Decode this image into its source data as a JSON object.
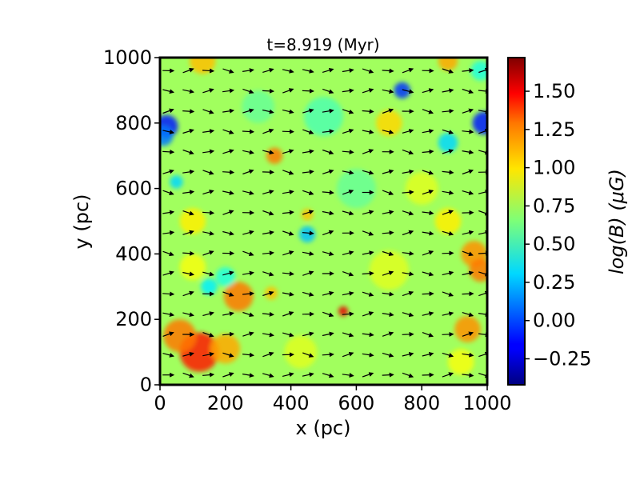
{
  "chart_data": {
    "type": "heatmap",
    "title": "t=8.919 (Myr)",
    "xlabel": "x (pc)",
    "ylabel": "y (pc)",
    "xlim": [
      0,
      1000
    ],
    "ylim": [
      0,
      1000
    ],
    "x_ticks": [
      0,
      200,
      400,
      600,
      800,
      1000
    ],
    "y_ticks": [
      0,
      200,
      400,
      600,
      800,
      1000
    ],
    "colorbar": {
      "label": "log(B) (μG)",
      "colormap": "jet",
      "range": [
        -0.42,
        1.72
      ],
      "ticks": [
        -0.25,
        0.0,
        0.25,
        0.5,
        0.75,
        1.0,
        1.25,
        1.5
      ],
      "tick_labels": [
        "−0.25",
        "0.00",
        "0.25",
        "0.50",
        "0.75",
        "1.00",
        "1.25",
        "1.50"
      ]
    },
    "background_level": 0.72,
    "features": [
      {
        "x": 20,
        "y": 790,
        "value": -0.1,
        "r": 35
      },
      {
        "x": 10,
        "y": 760,
        "value": 0.1,
        "r": 30
      },
      {
        "x": 740,
        "y": 900,
        "value": -0.05,
        "r": 25
      },
      {
        "x": 990,
        "y": 800,
        "value": -0.1,
        "r": 35
      },
      {
        "x": 880,
        "y": 740,
        "value": 0.3,
        "r": 30
      },
      {
        "x": 50,
        "y": 620,
        "value": 0.3,
        "r": 20
      },
      {
        "x": 450,
        "y": 460,
        "value": 0.25,
        "r": 25
      },
      {
        "x": 350,
        "y": 700,
        "value": 1.2,
        "r": 25
      },
      {
        "x": 450,
        "y": 520,
        "value": 1.05,
        "r": 18
      },
      {
        "x": 120,
        "y": 100,
        "value": 1.4,
        "r": 60
      },
      {
        "x": 60,
        "y": 150,
        "value": 1.2,
        "r": 50
      },
      {
        "x": 240,
        "y": 270,
        "value": 1.2,
        "r": 45
      },
      {
        "x": 200,
        "y": 110,
        "value": 1.1,
        "r": 45
      },
      {
        "x": 560,
        "y": 225,
        "value": 1.5,
        "r": 15
      },
      {
        "x": 940,
        "y": 170,
        "value": 1.15,
        "r": 40
      },
      {
        "x": 960,
        "y": 400,
        "value": 1.15,
        "r": 40
      },
      {
        "x": 980,
        "y": 350,
        "value": 1.2,
        "r": 35
      },
      {
        "x": 100,
        "y": 360,
        "value": 0.9,
        "r": 40
      },
      {
        "x": 200,
        "y": 330,
        "value": 0.45,
        "r": 30
      },
      {
        "x": 150,
        "y": 300,
        "value": 0.35,
        "r": 25
      },
      {
        "x": 130,
        "y": 990,
        "value": 1.05,
        "r": 40
      },
      {
        "x": 880,
        "y": 990,
        "value": 1.1,
        "r": 30
      },
      {
        "x": 700,
        "y": 800,
        "value": 1.0,
        "r": 40
      },
      {
        "x": 500,
        "y": 820,
        "value": 0.55,
        "r": 60
      },
      {
        "x": 600,
        "y": 600,
        "value": 0.6,
        "r": 60
      },
      {
        "x": 800,
        "y": 600,
        "value": 0.85,
        "r": 50
      },
      {
        "x": 300,
        "y": 850,
        "value": 0.6,
        "r": 50
      },
      {
        "x": 880,
        "y": 500,
        "value": 0.95,
        "r": 40
      },
      {
        "x": 430,
        "y": 100,
        "value": 0.85,
        "r": 50
      },
      {
        "x": 700,
        "y": 350,
        "value": 0.85,
        "r": 60
      },
      {
        "x": 100,
        "y": 500,
        "value": 0.95,
        "r": 40
      },
      {
        "x": 920,
        "y": 70,
        "value": 0.9,
        "r": 40
      },
      {
        "x": 340,
        "y": 280,
        "value": 1.05,
        "r": 20
      },
      {
        "x": 980,
        "y": 960,
        "value": 0.45,
        "r": 30
      }
    ],
    "vector_grid": {
      "x": [
        25,
        86,
        147,
        208,
        269,
        330,
        391,
        452,
        513,
        574,
        635,
        696,
        757,
        818,
        879,
        940,
        990
      ],
      "y": [
        30,
        92,
        154,
        216,
        278,
        340,
        402,
        464,
        526,
        588,
        650,
        712,
        774,
        836,
        898,
        960
      ],
      "field_direction": "predominantly +x (rightward) with slight tilts"
    }
  }
}
